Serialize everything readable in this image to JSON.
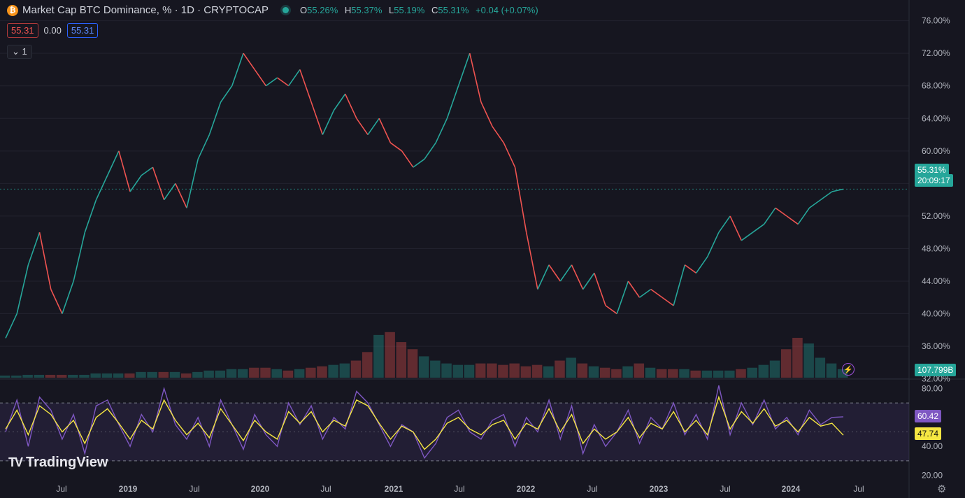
{
  "header": {
    "symbol_title": "Market Cap BTC Dominance, % · 1D · CRYPTOCAP",
    "ohlc": {
      "o_label": "O",
      "o_value": "55.26%",
      "h_label": "H",
      "h_value": "55.37%",
      "l_label": "L",
      "l_value": "55.19%",
      "c_label": "C",
      "c_value": "55.31%",
      "change": "+0.04 (+0.07%)"
    },
    "sell_price": "55.31",
    "spread": "0.00",
    "buy_price": "55.31",
    "collapse_label": "⌄ 1"
  },
  "price_scale": {
    "ticks": [
      "76.00%",
      "72.00%",
      "68.00%",
      "64.00%",
      "60.00%",
      "56.00%",
      "52.00%",
      "48.00%",
      "44.00%",
      "40.00%",
      "36.00%",
      "32.00%"
    ],
    "last_price_badge": "55.31%",
    "countdown_badge": "20:09:17",
    "volume_badge": "107.799B"
  },
  "rsi_scale": {
    "ticks": [
      "80.00",
      "40.00",
      "20.00"
    ],
    "rsi_badge": "60.42",
    "ma_badge": "47.74"
  },
  "time_axis": [
    "Jul",
    "2019",
    "Jul",
    "2020",
    "Jul",
    "2021",
    "Jul",
    "2022",
    "Jul",
    "2023",
    "Jul",
    "2024",
    "Jul"
  ],
  "watermark": "TradingView",
  "colors": {
    "up": "#26a69a",
    "down": "#ef5350",
    "rsi": "#7e57c2",
    "rsi_ma": "#f5e642",
    "bg": "#161620"
  },
  "chart_data": {
    "type": "line",
    "title": "Market Cap BTC Dominance, % · 1D · CRYPTOCAP",
    "ylim": [
      33,
      77
    ],
    "x": [
      "2018-04",
      "2018-05",
      "2018-06",
      "2018-07",
      "2018-08",
      "2018-09",
      "2018-10",
      "2018-11",
      "2018-12",
      "2019-01",
      "2019-02",
      "2019-03",
      "2019-04",
      "2019-05",
      "2019-06",
      "2019-07",
      "2019-08",
      "2019-09",
      "2019-10",
      "2019-11",
      "2019-12",
      "2020-01",
      "2020-02",
      "2020-03",
      "2020-04",
      "2020-05",
      "2020-06",
      "2020-07",
      "2020-08",
      "2020-09",
      "2020-10",
      "2020-11",
      "2020-12",
      "2021-01",
      "2021-02",
      "2021-03",
      "2021-04",
      "2021-05",
      "2021-06",
      "2021-07",
      "2021-08",
      "2021-09",
      "2021-10",
      "2021-11",
      "2021-12",
      "2022-01",
      "2022-02",
      "2022-03",
      "2022-04",
      "2022-05",
      "2022-06",
      "2022-07",
      "2022-08",
      "2022-09",
      "2022-10",
      "2022-11",
      "2022-12",
      "2023-01",
      "2023-02",
      "2023-03",
      "2023-04",
      "2023-05",
      "2023-06",
      "2023-07",
      "2023-08",
      "2023-09",
      "2023-10",
      "2023-11",
      "2023-12",
      "2024-01",
      "2024-02",
      "2024-03",
      "2024-04",
      "2024-05",
      "2024-06"
    ],
    "series": [
      {
        "values": [
          37,
          40,
          46,
          50,
          43,
          40,
          44,
          50,
          54,
          57,
          60,
          55,
          57,
          58,
          54,
          56,
          53,
          59,
          62,
          66,
          68,
          72,
          70,
          68,
          69,
          68,
          70,
          66,
          62,
          65,
          67,
          64,
          62,
          64,
          61,
          60,
          58,
          59,
          61,
          64,
          68,
          72,
          66,
          63,
          61,
          58,
          50,
          43,
          46,
          44,
          46,
          43,
          45,
          41,
          40,
          44,
          42,
          43,
          42,
          41,
          46,
          45,
          47,
          50,
          52,
          49,
          50,
          51,
          53,
          52,
          51,
          53,
          54,
          55,
          55.31
        ]
      }
    ],
    "volume_scale_max": 108,
    "volume": [
      1.5,
      1.5,
      2,
      2,
      2,
      2,
      2,
      2,
      3,
      3,
      3,
      3,
      4,
      4,
      4,
      4,
      3,
      4,
      5,
      5,
      6,
      6,
      7,
      7,
      6,
      5,
      6,
      7,
      8,
      9,
      10,
      12,
      18,
      30,
      32,
      25,
      20,
      15,
      12,
      10,
      9,
      9,
      10,
      10,
      9,
      10,
      8,
      9,
      8,
      12,
      14,
      10,
      8,
      7,
      6,
      8,
      10,
      7,
      6,
      6,
      6,
      5,
      5,
      5,
      5,
      6,
      7,
      9,
      12,
      20,
      28,
      24,
      14,
      10,
      6
    ],
    "rsi_ylim": [
      15,
      85
    ],
    "rsi_bands": [
      70,
      30
    ],
    "rsi": [
      50,
      72,
      40,
      74,
      65,
      45,
      62,
      35,
      68,
      72,
      55,
      40,
      62,
      50,
      80,
      55,
      45,
      60,
      40,
      72,
      55,
      38,
      62,
      48,
      40,
      70,
      55,
      68,
      45,
      60,
      52,
      78,
      70,
      55,
      40,
      55,
      50,
      32,
      42,
      60,
      65,
      50,
      45,
      58,
      62,
      40,
      60,
      50,
      72,
      45,
      68,
      35,
      55,
      40,
      50,
      65,
      42,
      60,
      52,
      70,
      48,
      62,
      45,
      82,
      48,
      70,
      55,
      72,
      52,
      60,
      48,
      65,
      55,
      60,
      60.42
    ],
    "rsi_ma": [
      52,
      65,
      48,
      68,
      62,
      50,
      58,
      42,
      60,
      66,
      56,
      45,
      58,
      52,
      72,
      58,
      48,
      56,
      46,
      66,
      55,
      44,
      58,
      50,
      45,
      64,
      56,
      64,
      50,
      58,
      54,
      72,
      68,
      56,
      45,
      54,
      50,
      38,
      45,
      56,
      60,
      52,
      48,
      55,
      58,
      45,
      56,
      52,
      66,
      50,
      62,
      42,
      52,
      45,
      50,
      60,
      46,
      56,
      52,
      64,
      50,
      58,
      48,
      74,
      52,
      64,
      56,
      66,
      54,
      58,
      50,
      60,
      54,
      56,
      47.74
    ]
  }
}
